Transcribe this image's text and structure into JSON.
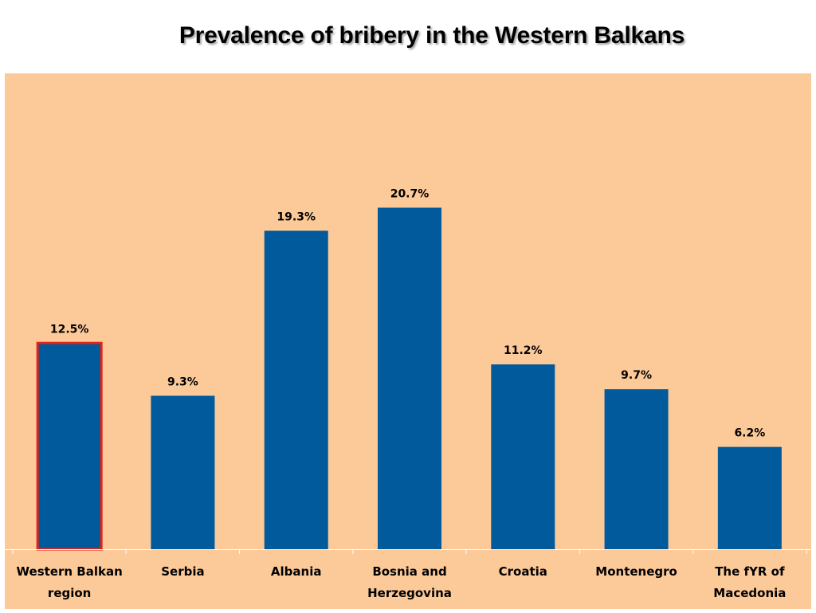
{
  "title": "Prevalence of bribery in the Western Balkans",
  "colors": {
    "plot_background": "#FCC998",
    "bar": "#005A9C",
    "highlight_outline": "#E32219",
    "axis": "#FFFFFF",
    "label_text": "#000000"
  },
  "chart_data": {
    "type": "bar",
    "title": "Prevalence of bribery in the Western Balkans",
    "categories": [
      [
        "Western Balkan",
        "region"
      ],
      [
        "Serbia"
      ],
      [
        "Albania"
      ],
      [
        "Bosnia and",
        "Herzegovina"
      ],
      [
        "Croatia"
      ],
      [
        "Montenegro"
      ],
      [
        "The fYR of",
        "Macedonia"
      ]
    ],
    "values": [
      12.5,
      9.3,
      19.3,
      20.7,
      11.2,
      9.7,
      6.2
    ],
    "value_labels": [
      "12.5%",
      "9.3%",
      "19.3%",
      "20.7%",
      "11.2%",
      "9.7%",
      "6.2%"
    ],
    "highlighted_index": 0,
    "ylim": [
      0,
      25
    ],
    "xlabel": "",
    "ylabel": "",
    "grid": false,
    "legend": "none"
  }
}
